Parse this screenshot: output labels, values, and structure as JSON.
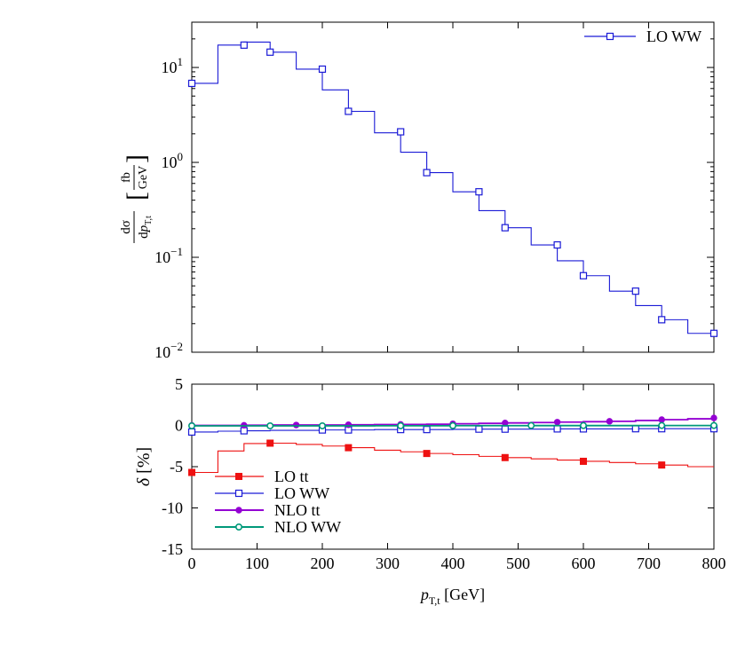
{
  "chart_data": [
    {
      "type": "line",
      "step": true,
      "yscale": "log",
      "xlim": [
        0,
        800
      ],
      "ylim": [
        0.01,
        30
      ],
      "xlabel": "",
      "ylabel": "dσ/dp_T,t [fb/GeV]",
      "ylabel_parts": {
        "numerator": "dσ",
        "denominator_main": "dp",
        "denominator_sub": "T,t",
        "unit_top": "fb",
        "unit_bottom": "GeV"
      },
      "yticks": [
        {
          "value": 0.01,
          "base": "10",
          "exp": "−2"
        },
        {
          "value": 0.1,
          "base": "10",
          "exp": "−1"
        },
        {
          "value": 1,
          "base": "10",
          "exp": "0"
        },
        {
          "value": 10,
          "base": "10",
          "exp": "1"
        }
      ],
      "legend_position": "top-right",
      "series": [
        {
          "name": "LO WW",
          "color": "#1a1ad6",
          "marker": "open-square",
          "edges": [
            0,
            40,
            80,
            120,
            160,
            200,
            240,
            280,
            320,
            360,
            400,
            440,
            480,
            520,
            560,
            600,
            640,
            680,
            720,
            760,
            800
          ],
          "values": [
            6.8,
            17.2,
            18.5,
            14.5,
            9.6,
            5.8,
            3.45,
            2.05,
            1.28,
            0.78,
            0.49,
            0.31,
            0.205,
            0.135,
            0.092,
            0.064,
            0.044,
            0.031,
            0.022,
            0.0158
          ],
          "marker_points": [
            [
              0,
              6.8
            ],
            [
              80,
              17.2
            ],
            [
              120,
              14.5
            ],
            [
              200,
              9.6
            ],
            [
              240,
              3.45
            ],
            [
              320,
              2.1
            ],
            [
              360,
              0.78
            ],
            [
              440,
              0.49
            ],
            [
              480,
              0.205
            ],
            [
              560,
              0.135
            ],
            [
              600,
              0.064
            ],
            [
              680,
              0.044
            ],
            [
              720,
              0.022
            ],
            [
              800,
              0.0158
            ]
          ]
        }
      ]
    },
    {
      "type": "line",
      "step": true,
      "xlim": [
        0,
        800
      ],
      "ylim": [
        -15,
        5
      ],
      "xlabel": "p_T,t [GeV]",
      "xlabel_parts": {
        "main": "p",
        "sub": "T,t",
        "unit": " [GeV]"
      },
      "ylabel": "δ [%]",
      "ylabel_parts": {
        "symbol": "δ",
        "unit": " [%]"
      },
      "xticks": [
        "0",
        "100",
        "200",
        "300",
        "400",
        "500",
        "600",
        "700",
        "800"
      ],
      "xtick_values": [
        0,
        100,
        200,
        300,
        400,
        500,
        600,
        700,
        800
      ],
      "yticks": [
        "5",
        "0",
        "-5",
        "-10",
        "-15"
      ],
      "ytick_values": [
        5,
        0,
        -5,
        -10,
        -15
      ],
      "legend_position": "bottom-left",
      "series": [
        {
          "name": "LO tt",
          "color": "#ee1111",
          "marker": "filled-square",
          "edges": [
            0,
            40,
            80,
            120,
            160,
            200,
            240,
            280,
            320,
            360,
            400,
            440,
            480,
            520,
            560,
            600,
            640,
            680,
            720,
            760,
            800
          ],
          "values": [
            -5.7,
            -3.1,
            -2.2,
            -2.15,
            -2.3,
            -2.5,
            -2.7,
            -3.0,
            -3.2,
            -3.4,
            -3.55,
            -3.75,
            -3.9,
            -4.05,
            -4.2,
            -4.35,
            -4.5,
            -4.65,
            -4.8,
            -5.0
          ],
          "marker_points": [
            [
              0,
              -5.7
            ],
            [
              120,
              -2.15
            ],
            [
              240,
              -2.7
            ],
            [
              360,
              -3.4
            ],
            [
              480,
              -3.9
            ],
            [
              600,
              -4.35
            ],
            [
              720,
              -4.8
            ]
          ]
        },
        {
          "name": "LO WW",
          "color": "#1a1ad6",
          "marker": "open-square",
          "edges": [
            0,
            40,
            80,
            120,
            160,
            200,
            240,
            280,
            320,
            360,
            400,
            440,
            480,
            520,
            560,
            600,
            640,
            680,
            720,
            760,
            800
          ],
          "values": [
            -0.8,
            -0.7,
            -0.65,
            -0.6,
            -0.6,
            -0.55,
            -0.55,
            -0.5,
            -0.5,
            -0.5,
            -0.48,
            -0.45,
            -0.45,
            -0.45,
            -0.42,
            -0.42,
            -0.42,
            -0.4,
            -0.4,
            -0.4
          ],
          "marker_points": [
            [
              0,
              -0.8
            ],
            [
              80,
              -0.65
            ],
            [
              200,
              -0.55
            ],
            [
              240,
              -0.55
            ],
            [
              320,
              -0.5
            ],
            [
              360,
              -0.5
            ],
            [
              440,
              -0.45
            ],
            [
              480,
              -0.45
            ],
            [
              560,
              -0.42
            ],
            [
              600,
              -0.42
            ],
            [
              680,
              -0.4
            ],
            [
              720,
              -0.4
            ],
            [
              800,
              -0.4
            ]
          ]
        },
        {
          "name": "NLO tt",
          "color": "#9400d3",
          "marker": "filled-circle",
          "edges": [
            0,
            40,
            80,
            120,
            160,
            200,
            240,
            280,
            320,
            360,
            400,
            440,
            480,
            520,
            560,
            600,
            640,
            680,
            720,
            760,
            800
          ],
          "values": [
            0.0,
            0.0,
            0.02,
            0.05,
            0.05,
            0.05,
            0.08,
            0.1,
            0.12,
            0.15,
            0.2,
            0.25,
            0.3,
            0.35,
            0.4,
            0.45,
            0.5,
            0.6,
            0.7,
            0.8
          ],
          "marker_points": [
            [
              0,
              0.0
            ],
            [
              80,
              0.02
            ],
            [
              160,
              0.05
            ],
            [
              240,
              0.08
            ],
            [
              320,
              0.12
            ],
            [
              400,
              0.2
            ],
            [
              480,
              0.3
            ],
            [
              560,
              0.4
            ],
            [
              640,
              0.5
            ],
            [
              720,
              0.7
            ],
            [
              800,
              0.9
            ]
          ]
        },
        {
          "name": "NLO WW",
          "color": "#00997a",
          "marker": "open-circle",
          "edges": [
            0,
            40,
            80,
            120,
            160,
            200,
            240,
            280,
            320,
            360,
            400,
            440,
            480,
            520,
            560,
            600,
            640,
            680,
            720,
            760,
            800
          ],
          "values": [
            -0.05,
            -0.05,
            -0.05,
            -0.05,
            -0.05,
            -0.05,
            -0.05,
            -0.04,
            -0.04,
            -0.04,
            -0.03,
            -0.03,
            -0.03,
            -0.02,
            -0.02,
            -0.02,
            -0.02,
            -0.02,
            -0.01,
            -0.01
          ],
          "marker_points": [
            [
              0,
              -0.05
            ],
            [
              120,
              -0.05
            ],
            [
              200,
              -0.05
            ],
            [
              320,
              -0.04
            ],
            [
              400,
              -0.03
            ],
            [
              520,
              -0.02
            ],
            [
              600,
              -0.02
            ],
            [
              720,
              -0.01
            ],
            [
              800,
              -0.01
            ]
          ]
        }
      ]
    }
  ]
}
